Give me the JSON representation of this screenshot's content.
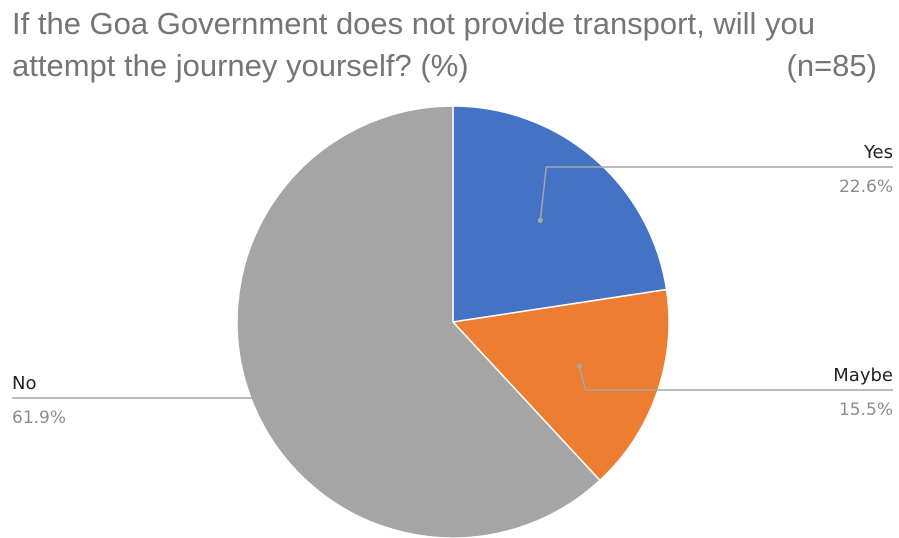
{
  "title_line_1": "If the Goa Government does not provide transport, will you",
  "title_line_2": "attempt the journey yourself? (%)",
  "n_label": "(n=85)",
  "chart_data": {
    "type": "pie",
    "title": "If the Goa Government does not provide transport, will you attempt the journey yourself? (%)",
    "subtitle": "(n=85)",
    "start_angle_deg": 0,
    "direction": "clockwise",
    "slices": [
      {
        "label": "Yes",
        "value": 22.6,
        "display": "22.6%",
        "color": "#4472C4"
      },
      {
        "label": "Maybe",
        "value": 15.5,
        "display": "15.5%",
        "color": "#ED7D31"
      },
      {
        "label": "No",
        "value": 61.9,
        "display": "61.9%",
        "color": "#A5A5A5"
      }
    ]
  }
}
